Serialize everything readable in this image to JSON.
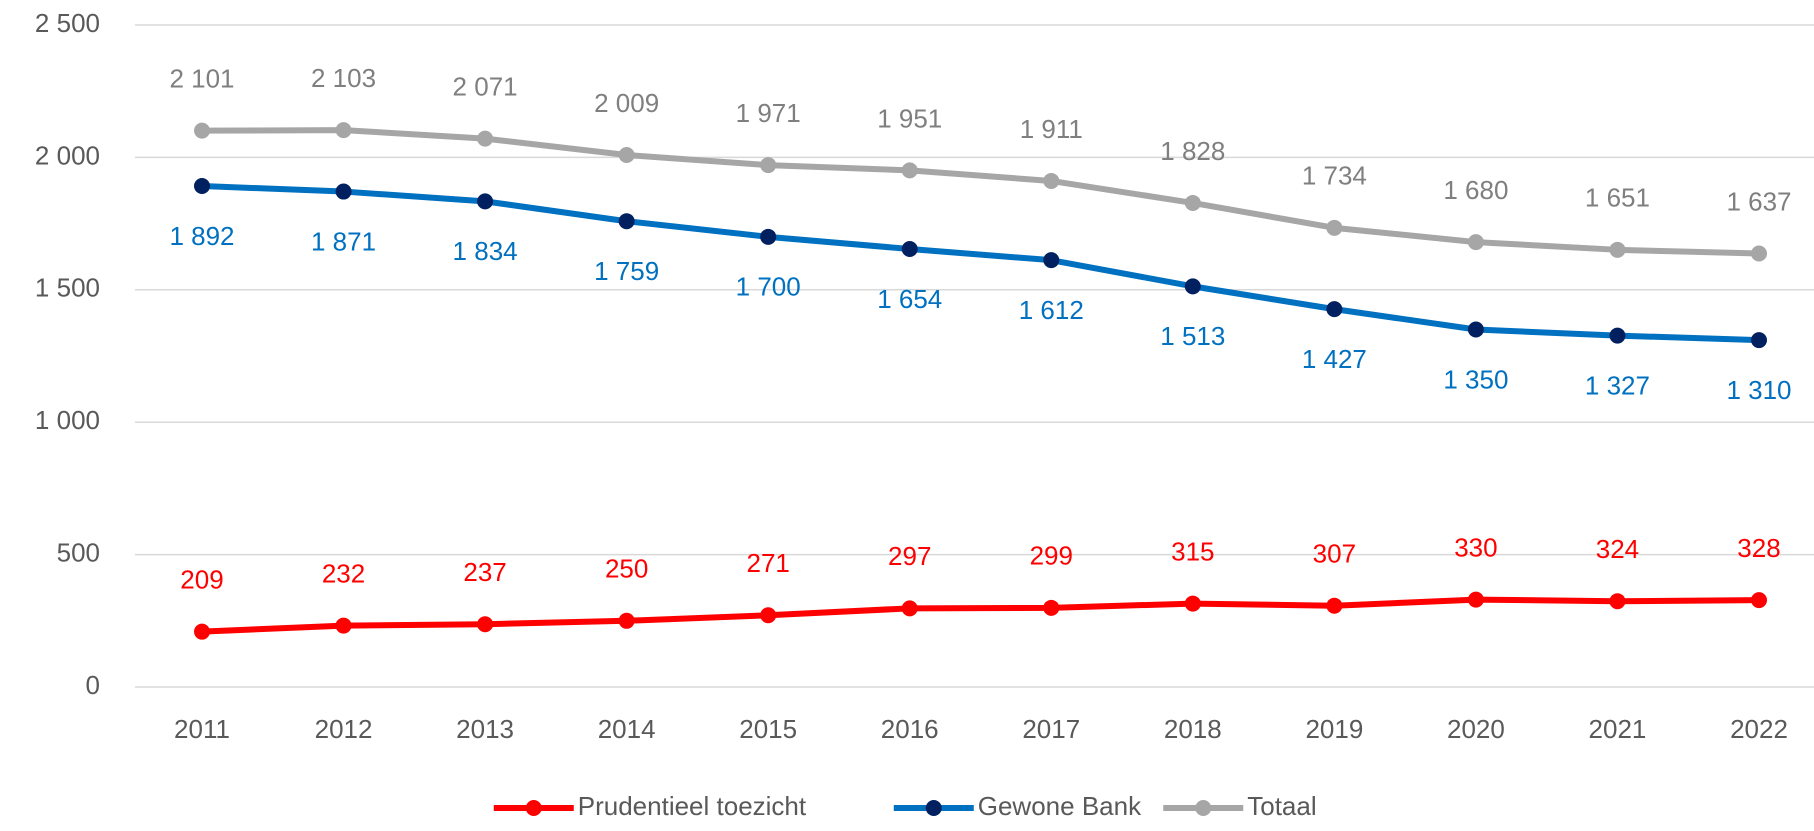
{
  "chart_data": {
    "type": "line",
    "categories": [
      "2011",
      "2012",
      "2013",
      "2014",
      "2015",
      "2016",
      "2017",
      "2018",
      "2019",
      "2020",
      "2021",
      "2022"
    ],
    "series": [
      {
        "name": "Prudentieel toezicht",
        "color": "#ff0000",
        "marker_color": "#ff0000",
        "values": [
          209,
          232,
          237,
          250,
          271,
          297,
          299,
          315,
          307,
          330,
          324,
          328
        ]
      },
      {
        "name": "Gewone Bank",
        "color": "#0070c0",
        "marker_color": "#002060",
        "values": [
          1892,
          1871,
          1834,
          1759,
          1700,
          1654,
          1612,
          1513,
          1427,
          1350,
          1327,
          1310
        ],
        "value_labels": [
          "1 892",
          "1 871",
          "1 834",
          "1 759",
          "1 700",
          "1 654",
          "1 612",
          "1 513",
          "1 427",
          "1 350",
          "1 327",
          "1 310"
        ]
      },
      {
        "name": "Totaal",
        "color": "#a6a6a6",
        "marker_color": "#a6a6a6",
        "values": [
          2101,
          2103,
          2071,
          2009,
          1971,
          1951,
          1911,
          1828,
          1734,
          1680,
          1651,
          1637
        ],
        "value_labels": [
          "2 101",
          "2 103",
          "2 071",
          "2 009",
          "1 971",
          "1 951",
          "1 911",
          "1 828",
          "1 734",
          "1 680",
          "1 651",
          "1 637"
        ]
      }
    ],
    "ylim": [
      0,
      2500
    ],
    "yticks": [
      0,
      500,
      {
        "value": 1000,
        "label": "1 000"
      },
      {
        "value": 1500,
        "label": "1 500"
      },
      {
        "value": 2000,
        "label": "2 000"
      },
      {
        "value": 2500,
        "label": "2 500"
      }
    ],
    "grid": true,
    "legend": "bottom"
  }
}
